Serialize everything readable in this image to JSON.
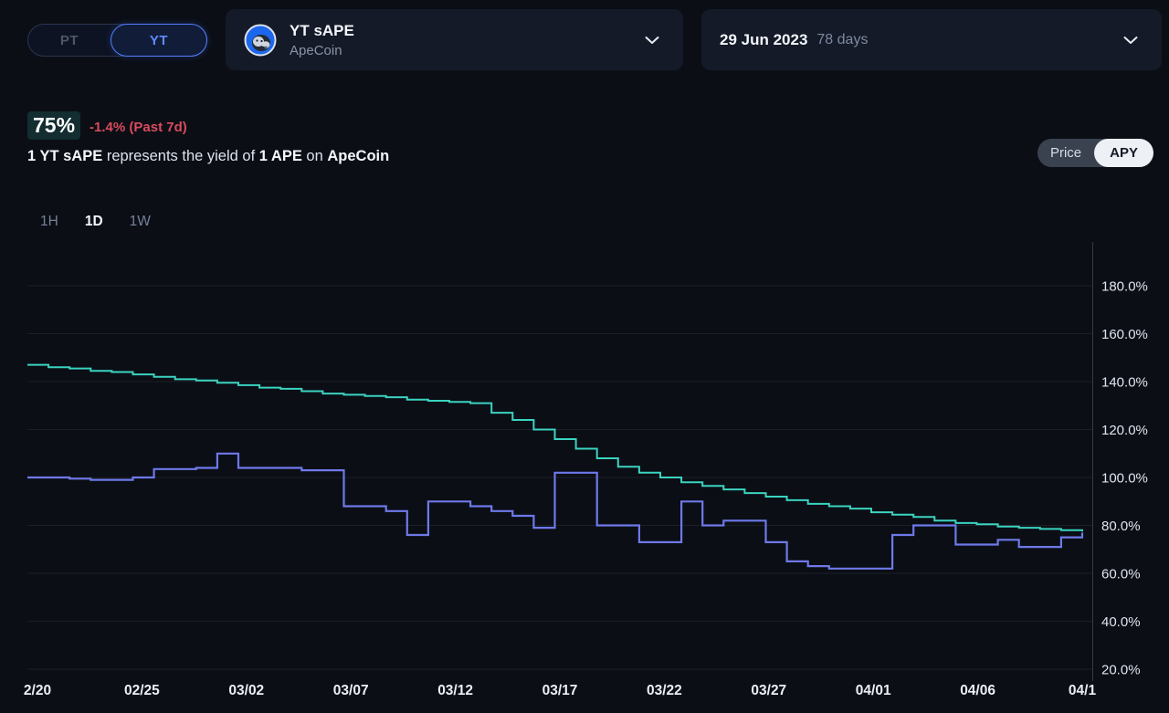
{
  "header": {
    "side_toggle": {
      "pt_label": "PT",
      "yt_label": "YT",
      "selected": "YT"
    },
    "market": {
      "title": "YT sAPE",
      "subtitle": "ApeCoin"
    },
    "maturity": {
      "date": "29 Jun 2023",
      "days": "78 days"
    }
  },
  "stats": {
    "apy_value": "75%",
    "apy_change": "-1.4% (Past 7d)",
    "description_parts": [
      {
        "text": "1 YT sAPE",
        "bold": true
      },
      {
        "text": " represents the yield of ",
        "bold": false
      },
      {
        "text": "1 APE",
        "bold": true
      },
      {
        "text": " on ",
        "bold": false
      },
      {
        "text": "ApeCoin",
        "bold": true
      }
    ]
  },
  "view_toggle": {
    "price_label": "Price",
    "apy_label": "APY",
    "selected": "APY"
  },
  "ranges": [
    {
      "label": "1H",
      "active": false
    },
    {
      "label": "1D",
      "active": true
    },
    {
      "label": "1W",
      "active": false
    }
  ],
  "colors": {
    "teal_line": "#3bd3c0",
    "purple_line": "#6e79e9",
    "negative": "#d94b5e",
    "yt_accent": "#5d8cff",
    "panel_bg": "#141a27",
    "page_bg": "#0b0e15"
  },
  "chart_data": {
    "type": "line",
    "step": true,
    "x_unit": "day",
    "x_tick_labels": [
      "2/20",
      "02/25",
      "03/02",
      "03/07",
      "03/12",
      "03/17",
      "03/22",
      "03/27",
      "04/01",
      "04/06",
      "04/1"
    ],
    "y_ticks": [
      180,
      160,
      140,
      120,
      100,
      80,
      60,
      40,
      20
    ],
    "y_tick_labels": [
      "180.0%",
      "160.0%",
      "140.0%",
      "120.0%",
      "100.0%",
      "80.0%",
      "60.0%",
      "40.0%",
      "20.0%"
    ],
    "ylim": [
      15,
      198
    ],
    "grid": true,
    "legend": "none",
    "series": [
      {
        "name": "series-purple-implied",
        "color": "#6e79e9",
        "values": [
          100,
          100,
          99.5,
          99,
          99,
          100,
          103.5,
          103.5,
          104,
          110,
          104,
          104,
          104,
          103,
          103,
          88,
          88,
          86,
          76,
          90,
          90,
          88,
          86,
          84,
          79,
          102,
          102,
          80,
          80,
          73,
          73,
          90,
          80,
          82,
          82,
          73,
          65,
          63,
          62,
          62,
          62,
          76,
          80,
          80,
          72,
          72,
          74,
          71,
          71,
          75,
          77
        ]
      },
      {
        "name": "series-teal-underlying",
        "color": "#3bd3c0",
        "values": [
          147,
          146,
          145.5,
          144.5,
          144,
          143,
          142,
          141,
          140.5,
          139.5,
          138.5,
          137.5,
          137,
          136,
          135,
          134.5,
          134,
          133.5,
          132.5,
          132,
          131.5,
          131,
          127,
          124,
          120,
          116,
          112,
          108,
          104.5,
          102,
          100,
          98,
          96.5,
          95,
          93.5,
          92,
          90.5,
          89,
          88,
          87,
          85.5,
          84.5,
          83.5,
          82,
          81,
          80.5,
          79.5,
          79,
          78.5,
          78,
          77.5
        ]
      }
    ]
  }
}
